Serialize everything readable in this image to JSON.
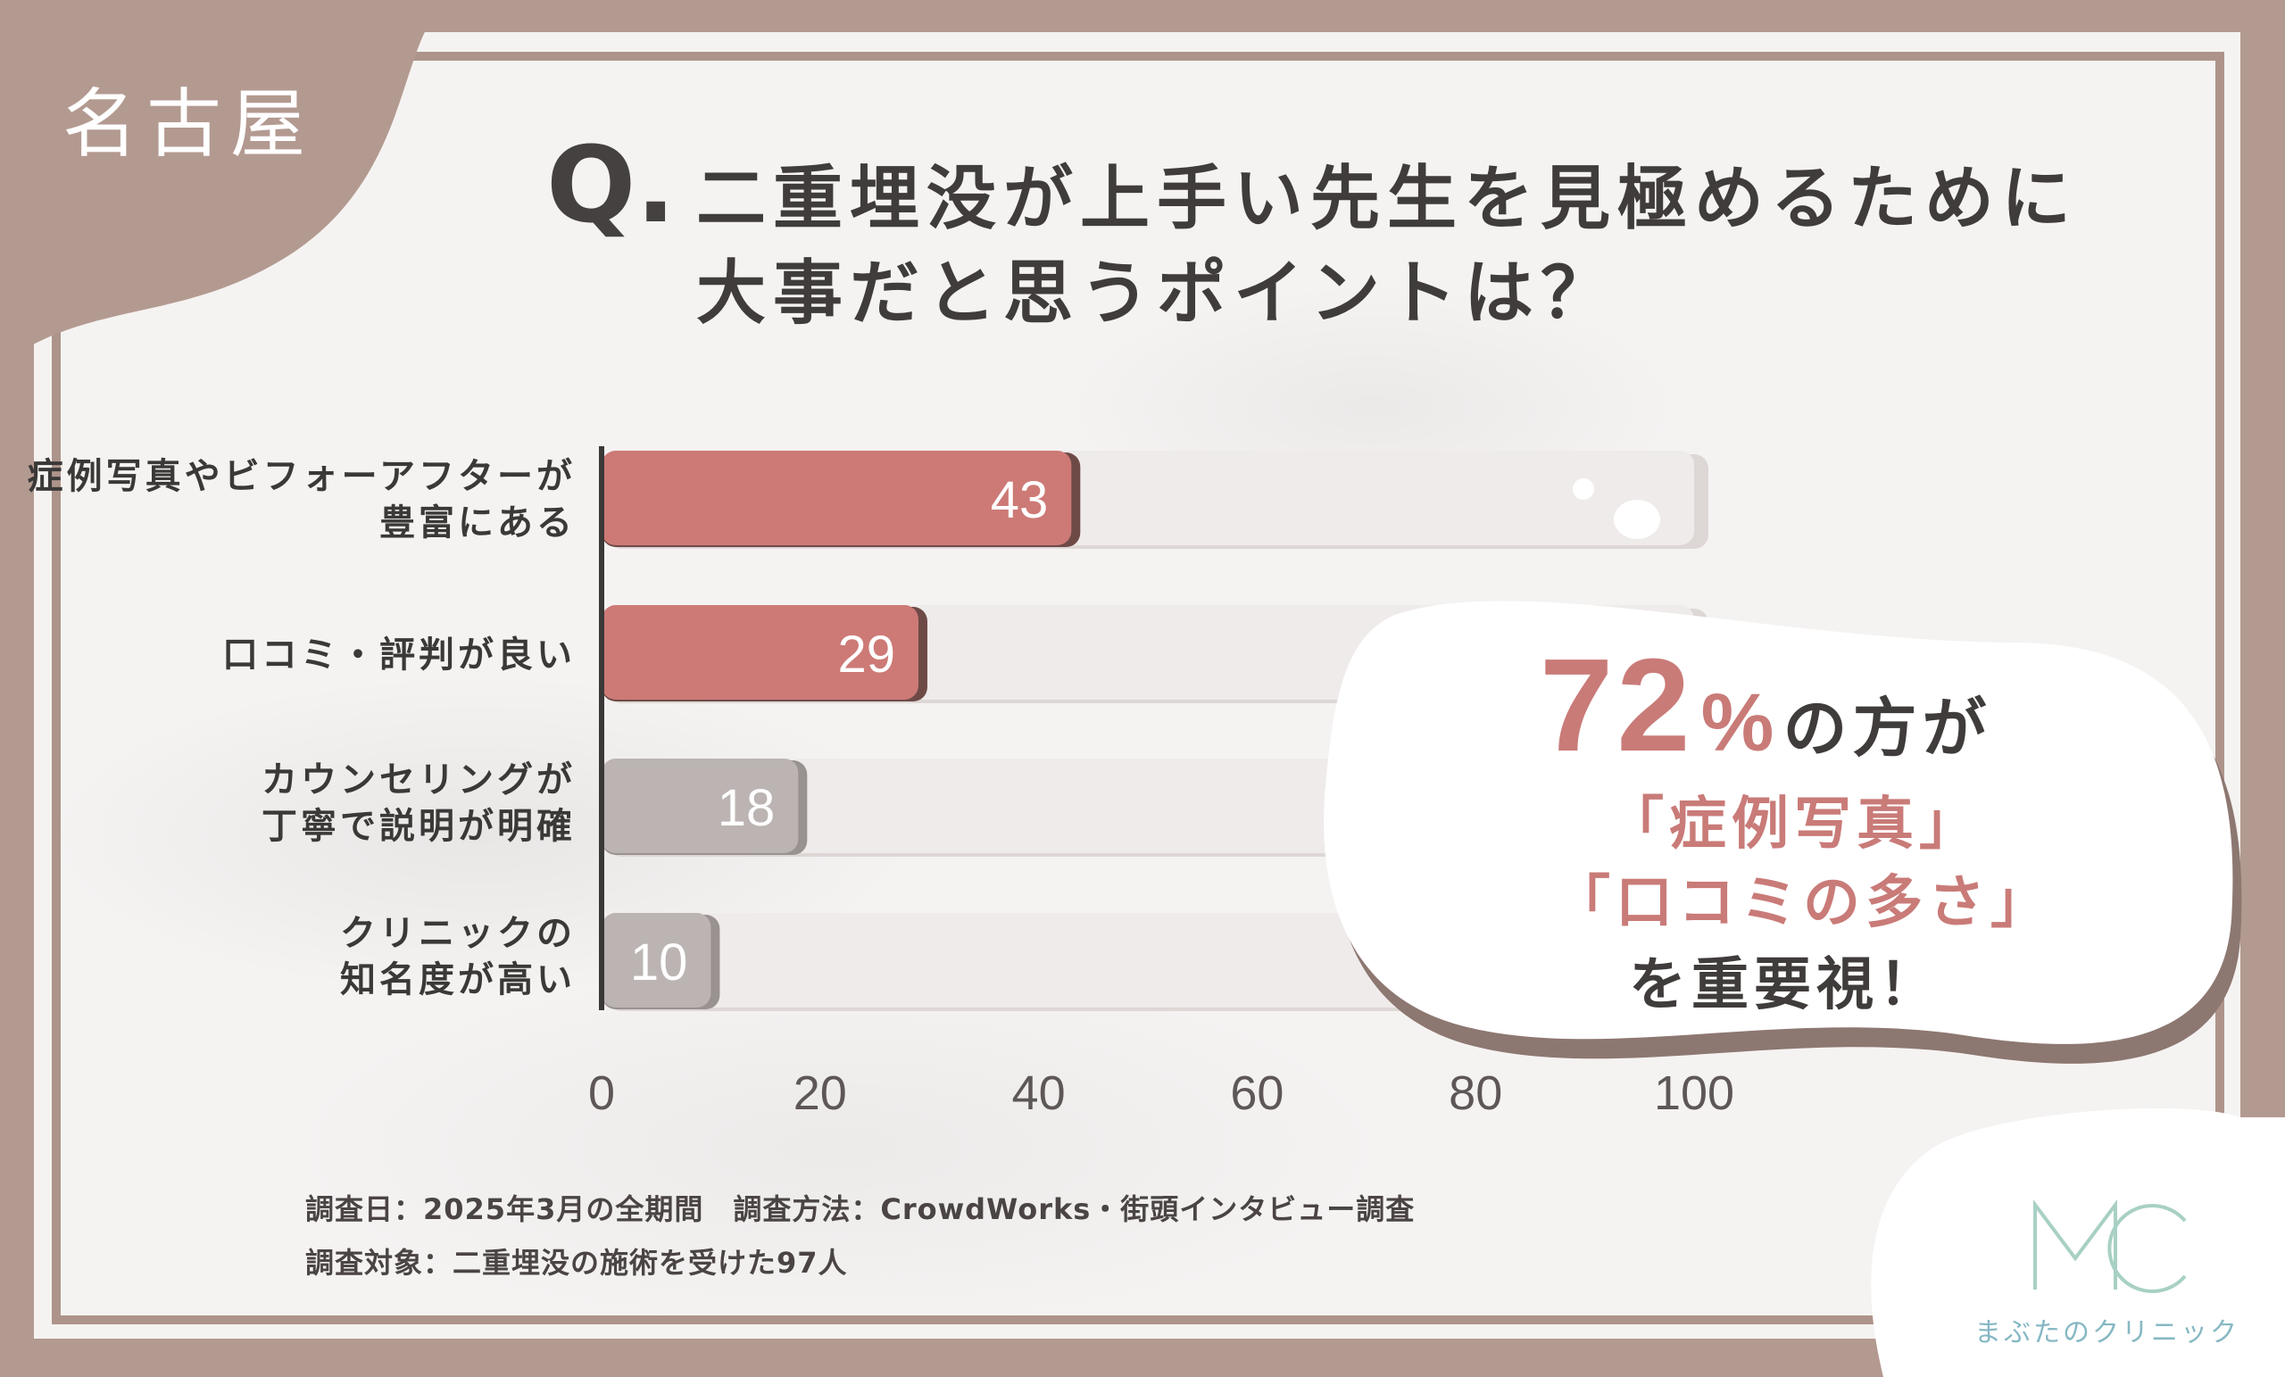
{
  "region": "名古屋",
  "question_mark": "Q.",
  "question_lines": [
    "二重埋没が上手い先生を見極めるために",
    "大事だと思うポイントは？"
  ],
  "chart_data": {
    "type": "bar",
    "orientation": "horizontal",
    "categories": [
      [
        "症例写真やビフォーアフターが",
        "豊富にある"
      ],
      [
        "口コミ・評判が良い"
      ],
      [
        "カウンセリングが",
        "丁寧で説明が明確"
      ],
      [
        "クリニックの",
        "知名度が高い"
      ]
    ],
    "values": [
      43,
      29,
      18,
      10
    ],
    "value_labels": [
      "43",
      "29",
      "18",
      "10"
    ],
    "xlim": [
      0,
      100
    ],
    "xticks": [
      "0",
      "20",
      "40",
      "60",
      "80",
      "100"
    ],
    "highlight_color": "#cd7a76",
    "muted_color": "#bbb4b2",
    "track_color": "#efebea"
  },
  "callout": {
    "percent": "72",
    "percent_sign": "%",
    "percent_suffix": "の方が",
    "line1": "「症例写真」",
    "line2": "「口コミの多さ」",
    "line3": "を重要視！",
    "accent_color": "#c97b78"
  },
  "footnotes": [
    "調査日：2025年3月の全期間　調査方法：CrowdWorks・街頭インタビュー調査",
    "調査対象：二重埋没の施術を受けた97人"
  ],
  "logo": {
    "mark": "MC",
    "name": "まぶたのクリニック"
  }
}
